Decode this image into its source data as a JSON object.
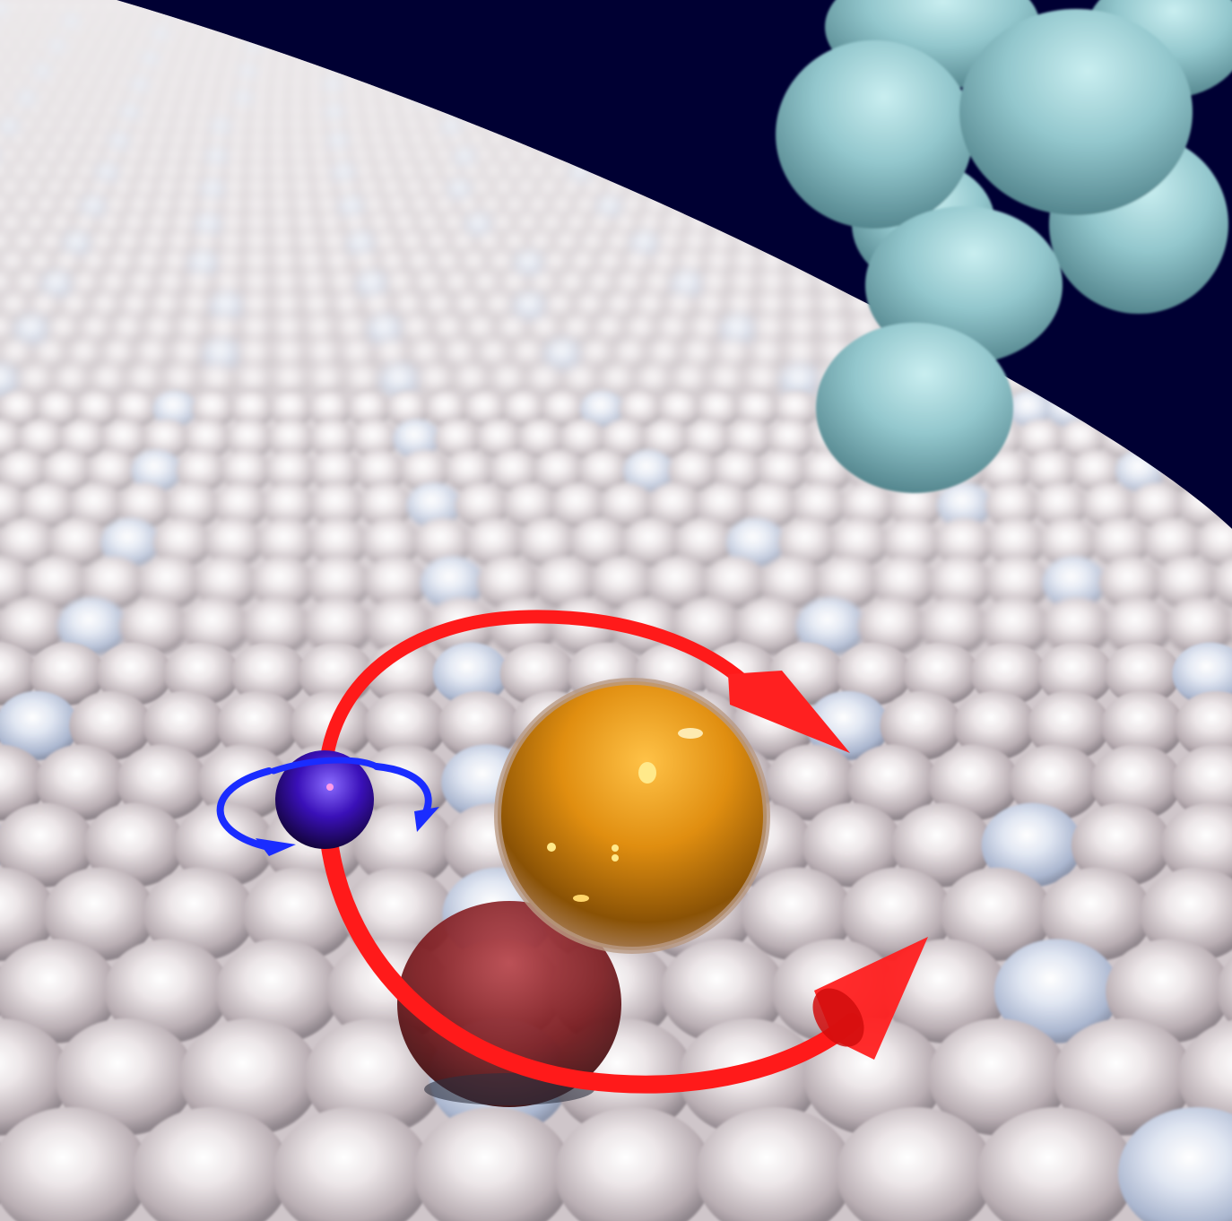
{
  "scene": {
    "description_visible_text": "",
    "colors": {
      "background": "#000033",
      "surface_atoms": "#d8cfd2",
      "surface_tint_blue": "#c9d6ea",
      "cluster_atoms": "#8cc2c9",
      "gold_sphere": "#d9880f",
      "dark_red_sphere": "#7a1a1e",
      "blue_atom": "#3a10b8",
      "red_arrow": "#ff1a1a",
      "blue_arrow": "#1a2cff"
    },
    "icons": [
      "curved-red-arrow-top",
      "curved-red-arrow-bottom",
      "blue-spin-arrow"
    ]
  }
}
